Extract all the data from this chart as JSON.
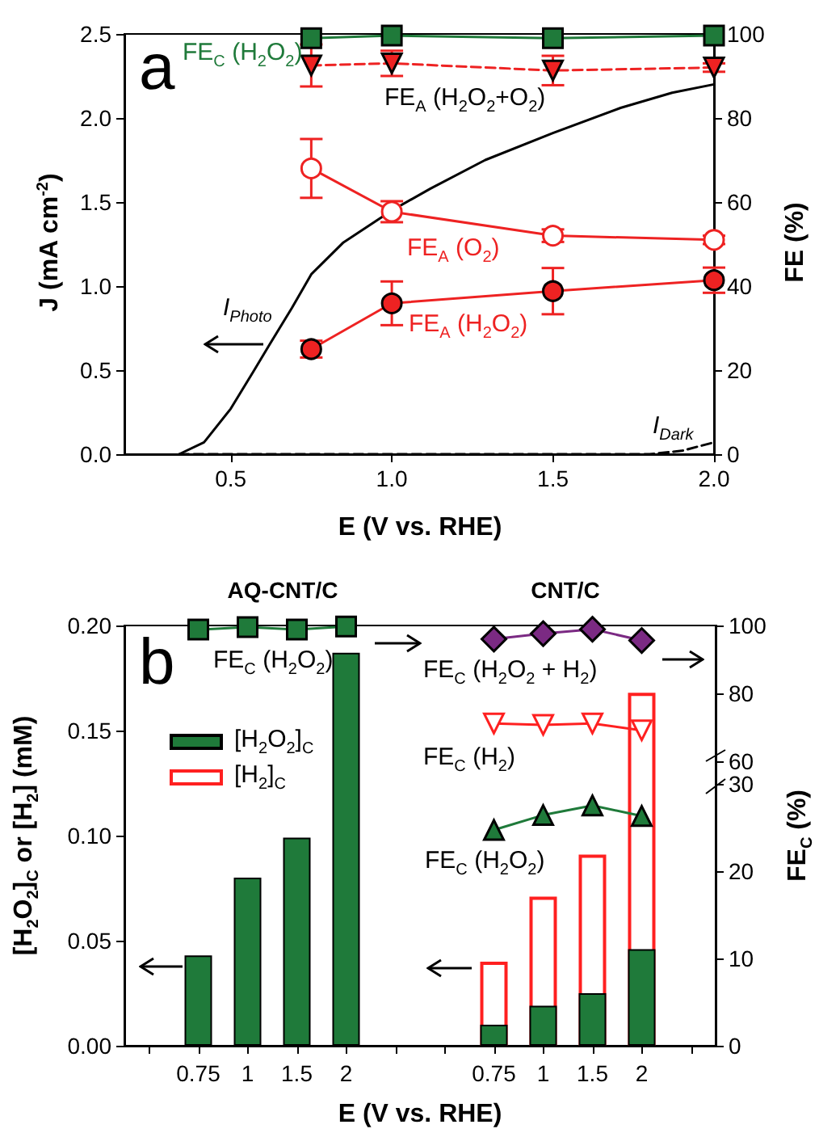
{
  "chart_data": [
    {
      "type": "line",
      "xlabel": "E (V vs. RHE)",
      "ylabel": "J (mA cm$^{-2}$)",
      "y2label": "FE (%)",
      "annotations": [
        "a"
      ],
      "xlim": [
        0.17,
        2.0
      ],
      "xticks": [
        {
          "value": 0.5,
          "label": "0.5"
        },
        {
          "value": 1,
          "label": "1.0"
        },
        {
          "value": 1.5,
          "label": "1.5"
        },
        {
          "value": 2,
          "label": "2.0"
        }
      ],
      "ylim": [
        0,
        2.5
      ],
      "yticks": [
        {
          "value": 0,
          "label": "0.0"
        },
        {
          "value": 0.5,
          "label": "0.5"
        },
        {
          "value": 1,
          "label": "1.0"
        },
        {
          "value": 1.5,
          "label": "1.5"
        },
        {
          "value": 2,
          "label": "2.0"
        },
        {
          "value": 2.5,
          "label": "2.5"
        }
      ],
      "y2lim": [
        0,
        100
      ],
      "y2ticks": [
        0,
        20,
        40,
        60,
        80,
        100
      ],
      "series": [
        {
          "name": "I$_{Photo}$",
          "color": "#000000",
          "marker": "none",
          "line_style": "solid",
          "x": [
            0.34,
            0.417,
            0.5,
            0.57,
            0.62,
            0.69,
            0.75,
            0.85,
            1.0,
            1.12,
            1.29,
            1.5,
            1.71,
            1.87,
            2.0
          ],
          "values": [
            0,
            0.07,
            0.27,
            0.49,
            0.65,
            0.87,
            1.07,
            1.26,
            1.45,
            1.58,
            1.75,
            1.91,
            2.06,
            2.15,
            2.2
          ]
        },
        {
          "name": "I$_{Dark}$",
          "color": "#000000",
          "marker": "none",
          "line_style": "dashed",
          "x": [
            0.34,
            1.8,
            1.9,
            2.0
          ],
          "values": [
            0,
            0,
            0.02,
            0.07
          ]
        },
        {
          "name": "FE$_{C}$ (H$_{2}$O$_{2}$)",
          "color": "#1f7a3a",
          "marker": "square",
          "line_style": "solid",
          "axis": "y2",
          "x": [
            0.75,
            1,
            1.5,
            2
          ],
          "values": [
            99,
            99.6,
            99,
            99.6
          ]
        },
        {
          "name": "FE$_{A}$ (H$_{2}$O$_{2}$+O$_{2}$)",
          "color": "#ee2222",
          "marker": "triangle-down",
          "line_style": "dashed",
          "axis": "y2",
          "x": [
            0.75,
            1,
            1.5,
            2
          ],
          "values": [
            92.5,
            93,
            91.3,
            92
          ],
          "errors": [
            5,
            3,
            3.5,
            1
          ]
        },
        {
          "name": "FE$_{A}$ (O$_{2}$)",
          "color": "#ee2222",
          "marker": "circle",
          "line_style": "solid",
          "axis": "y2",
          "x": [
            0.75,
            1,
            1.5,
            2
          ],
          "values": [
            68,
            57.7,
            52,
            51
          ],
          "errors": [
            7,
            2.5,
            1.5,
            1
          ]
        },
        {
          "name": "FE$_{A}$ (H$_{2}$O$_{2}$)",
          "color": "#ee2222",
          "marker": "circle",
          "line_style": "solid",
          "axis": "y2",
          "x": [
            0.75,
            1,
            1.5,
            2
          ],
          "values": [
            25,
            35.9,
            38.8,
            41.4
          ],
          "errors": [
            2,
            5.2,
            5.5,
            3
          ]
        }
      ]
    },
    {
      "type": "bar",
      "xlabel": "E (V vs. RHE)",
      "ylabel": "[H$_{2}$O$_{2}$]$_{C}$ or [H$_{2}$] (mM)",
      "y2label": "FE$_{C}$ (%)",
      "annotations": [
        "b",
        "AQ-CNT/C",
        "CNT/C"
      ],
      "legend": "top left",
      "categories": [
        null,
        "0.75",
        "1",
        "1.5",
        "2",
        null,
        null,
        "0.75",
        "1",
        "1.5",
        "2",
        null
      ],
      "ylim": [
        0,
        0.2
      ],
      "yticks": [
        {
          "value": 0,
          "label": "0.00"
        },
        {
          "value": 0.05,
          "label": "0.05"
        },
        {
          "value": 0.1,
          "label": "0.10"
        },
        {
          "value": 0.15,
          "label": "0.15"
        },
        {
          "value": 0.2,
          "label": "0.20"
        }
      ],
      "y2lim": [
        0,
        48.1
      ],
      "y2ticks": [
        0,
        10,
        20,
        30
      ],
      "y3lim": [
        -23.5,
        100
      ],
      "y3ticks": [
        60,
        80,
        100
      ],
      "series": [
        {
          "name": "[H$_{2}$O$_{2}$]$_{C}$",
          "color": "#1f7a3a",
          "values": [
            null,
            0.043,
            0.08,
            0.099,
            0.187,
            null,
            null,
            0.01,
            0.019,
            0.025,
            0.046,
            null
          ]
        },
        {
          "name": "[H$_{2}$]$_{C}$",
          "color": "#ff2020",
          "values": [
            null,
            null,
            null,
            null,
            null,
            null,
            null,
            0.04,
            0.071,
            0.091,
            0.168,
            null
          ]
        },
        {
          "type": "line",
          "name": "FE$_{C}$ (H$_{2}$O$_{2}$)",
          "color": "#1f7a3a",
          "marker": "square",
          "axis": "y3",
          "values": [
            null,
            98.8,
            99.5,
            98.8,
            99.7,
            null,
            null,
            null,
            null,
            null,
            null,
            null
          ]
        },
        {
          "type": "line",
          "name": "FE$_{C}$ (H$_{2}$O$_{2}$ + H$_{2}$)",
          "color": "#7b2a83",
          "marker": "diamond",
          "axis": "y3",
          "values": [
            null,
            null,
            null,
            null,
            null,
            null,
            null,
            96,
            97.6,
            98.9,
            95.6,
            null
          ]
        },
        {
          "type": "line",
          "name": "FE$_{C}$ (H$_{2}$)",
          "color": "#ff2020",
          "marker": "triangle-down",
          "axis": "y3",
          "values": [
            null,
            null,
            null,
            null,
            null,
            null,
            null,
            71.2,
            70.8,
            71.2,
            69.2,
            null
          ]
        },
        {
          "type": "line",
          "name": "FE$_{C}$ (H$_{2}$O$_{2}$)",
          "color": "#1f7a3a",
          "marker": "triangle",
          "axis": "y2",
          "values": [
            null,
            null,
            null,
            null,
            null,
            null,
            null,
            24.7,
            26.4,
            27.5,
            26.3,
            null
          ]
        }
      ]
    }
  ]
}
